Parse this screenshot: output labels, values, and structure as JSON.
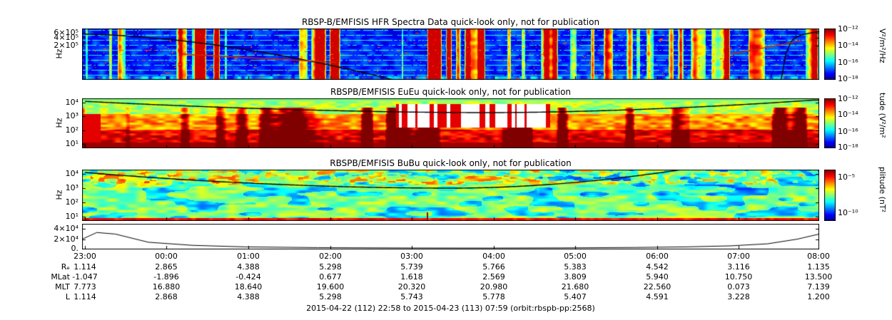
{
  "chart_data": [
    {
      "type": "heatmap",
      "title": "RBSP-B/EMFISIS  HFR Spectra Data quick-look only, not for publication",
      "ylabel": "Hz",
      "y_scale": "log",
      "yticks": [
        "6×10⁵",
        "4×10⁵",
        "2×10⁵"
      ],
      "colorbar": {
        "unit": "V²/m²/Hz",
        "ticks": [
          "10⁻¹²",
          "10⁻¹⁴",
          "10⁻¹⁶",
          "10⁻¹⁸"
        ]
      },
      "x_range": "2015-04-22 22:58 to 2015-04-23 07:59 UT",
      "description": "HFR electric-field spectrogram: faint blue background with dotted horizontal receiver bands, intermittent green/yellow/red bursts, and a black fce-related trace descending from the upper left below the panel near 01:00 and rising steeply back to the top near 07:00."
    },
    {
      "type": "heatmap",
      "title": "RBSPB/EMFISIS  EuEu quick-look only, not for publication",
      "ylabel": "Hz",
      "y_scale": "log",
      "yticks": [
        "10⁴",
        "10³",
        "10²",
        "10¹"
      ],
      "colorbar": {
        "unit": "tude (V²/m²",
        "ticks": [
          "10⁻¹²",
          "10⁻¹⁴",
          "10⁻¹⁶",
          "10⁻¹⁸"
        ]
      },
      "x_range": "2015-04-22 22:58 to 2015-04-23 07:59 UT",
      "description": "Electric-field EuEu spectrogram: intense red/orange power below ~100 Hz for the whole orbit, broadband red bursts near 03:00-04:30, yellow-green power at kHz frequencies, black fce trace running just below the top edge of the panel."
    },
    {
      "type": "heatmap",
      "title": "RBSPB/EMFISIS  BuBu quick-look only, not for publication",
      "ylabel": "Hz",
      "y_scale": "log",
      "yticks": [
        "10⁴",
        "10³",
        "10²",
        "10¹"
      ],
      "colorbar": {
        "unit": "plitude (nT²",
        "ticks": [
          "10⁻⁵",
          "10⁻¹⁰"
        ]
      },
      "x_range": "2015-04-22 22:58 to 2015-04-23 07:59 UT",
      "description": "Magnetic-field BuBu spectrogram: broad green/cyan power at all frequencies with yellow-green low-frequency enhancements, black fce trace dipping to mid-panel and exiting through the top near 06:00."
    },
    {
      "type": "line",
      "yticks": [
        "4×10⁴",
        "2×10⁴",
        "0."
      ],
      "ylim": [
        0,
        50000
      ],
      "series": [
        {
          "name": "black trace (fce-related frequency, Hz)",
          "u": [
            0,
            0.02,
            0.045,
            0.09,
            0.15,
            0.22,
            0.32,
            0.45,
            0.55,
            0.65,
            0.75,
            0.82,
            0.88,
            0.93,
            0.97,
            1.0
          ],
          "values": [
            20000,
            33000,
            30000,
            14000,
            8000,
            5000,
            3500,
            2800,
            2700,
            3000,
            3800,
            5000,
            7000,
            11000,
            20000,
            30000
          ]
        }
      ]
    }
  ],
  "time_axis": {
    "ticks": [
      "23:00",
      "00:00",
      "01:00",
      "02:00",
      "03:00",
      "04:00",
      "05:00",
      "06:00",
      "07:00",
      "08:00"
    ]
  },
  "ephemeris": {
    "rows": [
      {
        "label": "Rₑ",
        "values": [
          "1.114",
          "2.865",
          "4.388",
          "5.298",
          "5.739",
          "5.766",
          "5.383",
          "4.542",
          "3.116",
          "1.135"
        ]
      },
      {
        "label": "MLat",
        "values": [
          "-1.047",
          "-1.896",
          "-0.424",
          "0.677",
          "1.618",
          "2.569",
          "3.809",
          "5.940",
          "10.750",
          "13.500"
        ]
      },
      {
        "label": "MLT",
        "values": [
          "7.773",
          "16.880",
          "18.640",
          "19.600",
          "20.320",
          "20.980",
          "21.680",
          "22.560",
          "0.073",
          "7.139"
        ]
      },
      {
        "label": "L",
        "values": [
          "1.114",
          "2.868",
          "4.388",
          "5.298",
          "5.743",
          "5.778",
          "5.407",
          "4.591",
          "3.228",
          "1.200"
        ]
      }
    ]
  },
  "footer": "2015-04-22 (112) 22:58 to 2015-04-23 (113) 07:59 (orbit:rbspb-pp:2568)"
}
